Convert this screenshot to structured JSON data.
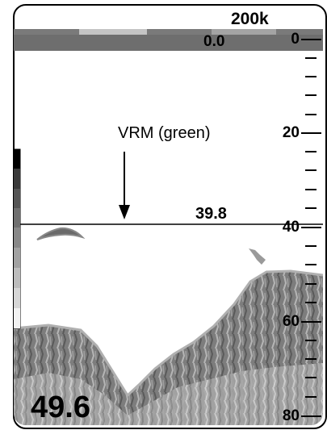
{
  "header": {
    "frequency": "200k",
    "shift_value": "0.0"
  },
  "vrm": {
    "value": "39.8",
    "label": "VRM (green)"
  },
  "readout": {
    "depth": "49.6"
  },
  "depth_scale": {
    "labels": [
      "0",
      "20",
      "40",
      "60",
      "80"
    ]
  },
  "colors": {
    "echo_dark": "#5a5a5a",
    "echo_mid": "#8a8a8a",
    "echo_light": "#c8c8c8",
    "bottom_line": "#b0b0b0",
    "color_bar_top": "#000000"
  }
}
